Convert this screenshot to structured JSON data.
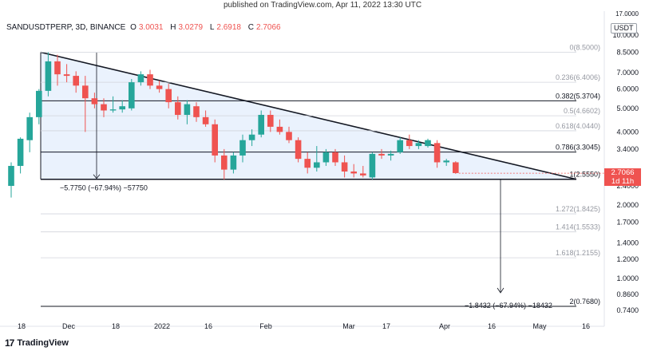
{
  "caption": "published on TradingView.com, Apr 11, 2022 13:30 UTC",
  "header": {
    "symbol": "SANDUSDTPERP, 3D, BINANCE",
    "o_label": "O",
    "o_value": "3.0031",
    "h_label": "H",
    "h_value": "3.0279",
    "l_label": "L",
    "l_value": "2.6918",
    "c_label": "C",
    "c_value": "2.7066"
  },
  "price_axis": {
    "currency": "USDT",
    "top_value": "17.0000",
    "ticks": [
      "10.0000",
      "8.5000",
      "7.0000",
      "6.0000",
      "5.0000",
      "4.0000",
      "3.4000",
      "2.4000",
      "2.0000",
      "1.7000",
      "1.4000",
      "1.2000",
      "1.0000",
      "0.8600",
      "0.7400"
    ],
    "last_price": "2.7066",
    "countdown": "1d 11h"
  },
  "time_axis": {
    "labels": [
      "18",
      "Dec",
      "18",
      "2022",
      "16",
      "Feb",
      "Mar",
      "17",
      "Apr",
      "16",
      "May",
      "16"
    ]
  },
  "fib_levels": [
    {
      "label": "0(8.5000)",
      "bold": false
    },
    {
      "label": "0.236(6.4006)",
      "bold": false
    },
    {
      "label": "0.382(5.3704)",
      "bold": true
    },
    {
      "label": "0.5(4.6602)",
      "bold": false
    },
    {
      "label": "0.618(4.0440)",
      "bold": false
    },
    {
      "label": "0.786(3.3045)",
      "bold": true
    },
    {
      "label": "1(2.5550)",
      "bold": true
    },
    {
      "label": "1.272(1.8425)",
      "bold": false
    },
    {
      "label": "1.414(1.5533)",
      "bold": false
    },
    {
      "label": "1.618(1.2155)",
      "bold": false
    },
    {
      "label": "2(0.7680)",
      "bold": true
    }
  ],
  "annotations": {
    "measure_left": "−5.7750 (−67.94%) −57750",
    "measure_right": "−1.8432 (−67.94%) −18432"
  },
  "brand": {
    "name": "TradingView",
    "logo": "17"
  },
  "colors": {
    "up": "#26a69a",
    "down": "#ef5350",
    "triangle_fill": "#e3eefc",
    "text": "#131722",
    "fib": "#b2b5be"
  },
  "chart_data": {
    "type": "candlestick",
    "symbol": "SANDUSDTPERP",
    "interval": "3D",
    "y_scale": "log",
    "ylim": [
      0.7,
      17
    ],
    "candles": [
      {
        "o": 2.4,
        "h": 3.0,
        "l": 2.15,
        "c": 2.9
      },
      {
        "o": 2.9,
        "h": 3.8,
        "l": 2.7,
        "c": 3.75
      },
      {
        "o": 3.7,
        "h": 4.8,
        "l": 3.3,
        "c": 4.6
      },
      {
        "o": 4.6,
        "h": 6.0,
        "l": 4.3,
        "c": 5.9
      },
      {
        "o": 5.9,
        "h": 8.5,
        "l": 5.6,
        "c": 7.8
      },
      {
        "o": 7.8,
        "h": 8.3,
        "l": 6.2,
        "c": 6.9
      },
      {
        "o": 6.9,
        "h": 7.6,
        "l": 6.4,
        "c": 6.8
      },
      {
        "o": 6.8,
        "h": 7.1,
        "l": 5.8,
        "c": 6.2
      },
      {
        "o": 6.2,
        "h": 6.8,
        "l": 4.0,
        "c": 5.5
      },
      {
        "o": 5.5,
        "h": 5.8,
        "l": 5.0,
        "c": 5.2
      },
      {
        "o": 5.2,
        "h": 5.5,
        "l": 4.6,
        "c": 4.9
      },
      {
        "o": 4.9,
        "h": 5.6,
        "l": 4.8,
        "c": 4.95
      },
      {
        "o": 4.95,
        "h": 5.4,
        "l": 4.8,
        "c": 5.1
      },
      {
        "o": 5.0,
        "h": 6.6,
        "l": 4.9,
        "c": 6.4
      },
      {
        "o": 6.4,
        "h": 7.1,
        "l": 6.2,
        "c": 6.9
      },
      {
        "o": 6.9,
        "h": 7.2,
        "l": 6.0,
        "c": 6.2
      },
      {
        "o": 6.2,
        "h": 6.5,
        "l": 5.8,
        "c": 6.0
      },
      {
        "o": 6.0,
        "h": 6.3,
        "l": 5.0,
        "c": 5.3
      },
      {
        "o": 5.3,
        "h": 5.6,
        "l": 4.5,
        "c": 4.7
      },
      {
        "o": 4.7,
        "h": 5.4,
        "l": 4.3,
        "c": 5.2
      },
      {
        "o": 5.1,
        "h": 5.3,
        "l": 4.4,
        "c": 4.6
      },
      {
        "o": 4.6,
        "h": 4.9,
        "l": 4.2,
        "c": 4.3
      },
      {
        "o": 4.3,
        "h": 4.5,
        "l": 3.0,
        "c": 3.2
      },
      {
        "o": 3.2,
        "h": 3.4,
        "l": 2.55,
        "c": 2.8
      },
      {
        "o": 2.8,
        "h": 3.3,
        "l": 2.7,
        "c": 3.2
      },
      {
        "o": 3.2,
        "h": 3.9,
        "l": 3.0,
        "c": 3.7
      },
      {
        "o": 3.7,
        "h": 4.1,
        "l": 3.5,
        "c": 3.9
      },
      {
        "o": 3.9,
        "h": 4.9,
        "l": 3.8,
        "c": 4.7
      },
      {
        "o": 4.7,
        "h": 4.9,
        "l": 4.0,
        "c": 4.2
      },
      {
        "o": 4.2,
        "h": 4.5,
        "l": 3.9,
        "c": 4.0
      },
      {
        "o": 4.0,
        "h": 4.2,
        "l": 3.6,
        "c": 3.7
      },
      {
        "o": 3.7,
        "h": 3.8,
        "l": 3.0,
        "c": 3.1
      },
      {
        "o": 3.1,
        "h": 3.3,
        "l": 2.7,
        "c": 2.85
      },
      {
        "o": 2.85,
        "h": 3.5,
        "l": 2.75,
        "c": 3.0
      },
      {
        "o": 3.0,
        "h": 3.4,
        "l": 2.9,
        "c": 3.3
      },
      {
        "o": 3.3,
        "h": 3.4,
        "l": 2.9,
        "c": 3.0
      },
      {
        "o": 3.0,
        "h": 3.2,
        "l": 2.6,
        "c": 2.75
      },
      {
        "o": 2.75,
        "h": 2.95,
        "l": 2.6,
        "c": 2.7
      },
      {
        "o": 2.7,
        "h": 2.9,
        "l": 2.6,
        "c": 2.65
      },
      {
        "o": 2.6,
        "h": 3.3,
        "l": 2.55,
        "c": 3.25
      },
      {
        "o": 3.25,
        "h": 3.4,
        "l": 3.1,
        "c": 3.2
      },
      {
        "o": 3.2,
        "h": 3.35,
        "l": 3.05,
        "c": 3.25
      },
      {
        "o": 3.3,
        "h": 3.8,
        "l": 3.25,
        "c": 3.7
      },
      {
        "o": 3.7,
        "h": 3.9,
        "l": 3.4,
        "c": 3.5
      },
      {
        "o": 3.5,
        "h": 3.7,
        "l": 3.4,
        "c": 3.6
      },
      {
        "o": 3.5,
        "h": 3.75,
        "l": 3.45,
        "c": 3.7
      },
      {
        "o": 3.6,
        "h": 3.7,
        "l": 2.85,
        "c": 3.0
      },
      {
        "o": 3.0,
        "h": 3.1,
        "l": 2.9,
        "c": 3.05
      },
      {
        "o": 3.0,
        "h": 3.03,
        "l": 2.69,
        "c": 2.71
      }
    ],
    "pattern": "descending-triangle",
    "trendline": {
      "start": 8.5,
      "end": 2.555
    },
    "support": 2.555,
    "projection": {
      "from": 2.555,
      "to": 0.768
    }
  }
}
